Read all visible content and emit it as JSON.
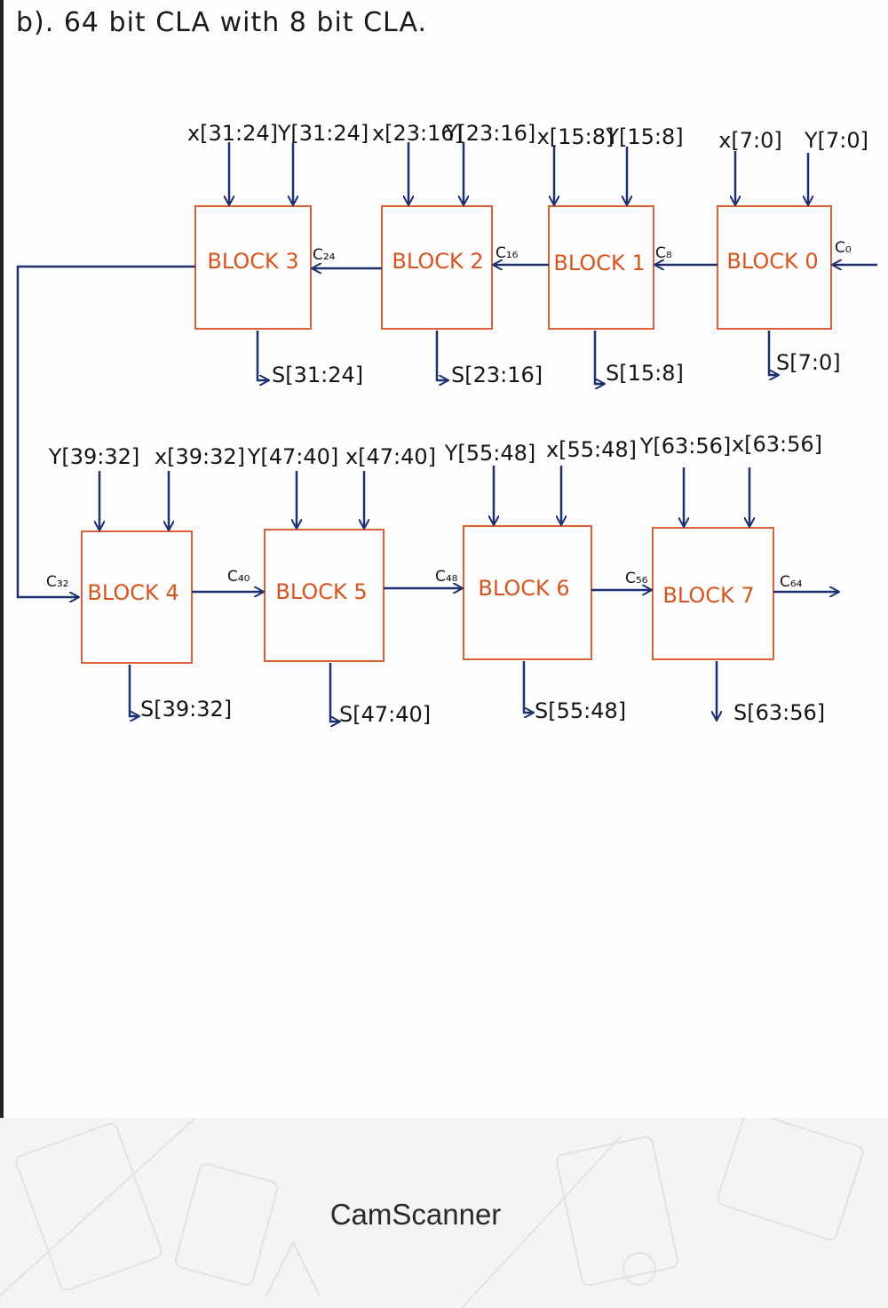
{
  "heading": "b). 64 bit CLA with 8 bit CLA.",
  "top_row": [
    {
      "name": "BLOCK 0",
      "a": "x[7:0]",
      "b": "Y[7:0]",
      "sum": "S[7:0]",
      "carry_in": "C₀"
    },
    {
      "name": "BLOCK 1",
      "a": "x[15:8]",
      "b": "Y[15:8]",
      "sum": "S[15:8]",
      "carry_in": "C₈"
    },
    {
      "name": "BLOCK 2",
      "a": "x[23:16]",
      "b": "Y[23:16]",
      "sum": "S[23:16]",
      "carry_in": "C₁₆"
    },
    {
      "name": "BLOCK 3",
      "a": "x[31:24]",
      "b": "Y[31:24]",
      "sum": "S[31:24]",
      "carry_in": "C₂₄"
    }
  ],
  "bottom_row": [
    {
      "name": "BLOCK 4",
      "a": "Y[39:32]",
      "b": "x[39:32]",
      "sum": "S[39:32]",
      "carry_in": "C₃₂"
    },
    {
      "name": "BLOCK 5",
      "a": "Y[47:40]",
      "b": "x[47:40]",
      "sum": "S[47:40]",
      "carry_in": "C₄₀"
    },
    {
      "name": "BLOCK 6",
      "a": "Y[55:48]",
      "b": "x[55:48]",
      "sum": "S[55:48]",
      "carry_in": "C₄₈"
    },
    {
      "name": "BLOCK 7",
      "a": "Y[63:56]",
      "b": "x[63:56]",
      "sum": "S[63:56]",
      "carry_in": "C₅₆"
    }
  ],
  "carry_out": "C₆₄",
  "footer": {
    "brand": "CamScanner"
  },
  "colors": {
    "block": "#d8613a",
    "wire": "#1d2f6e",
    "block_text": "#d8541f"
  }
}
